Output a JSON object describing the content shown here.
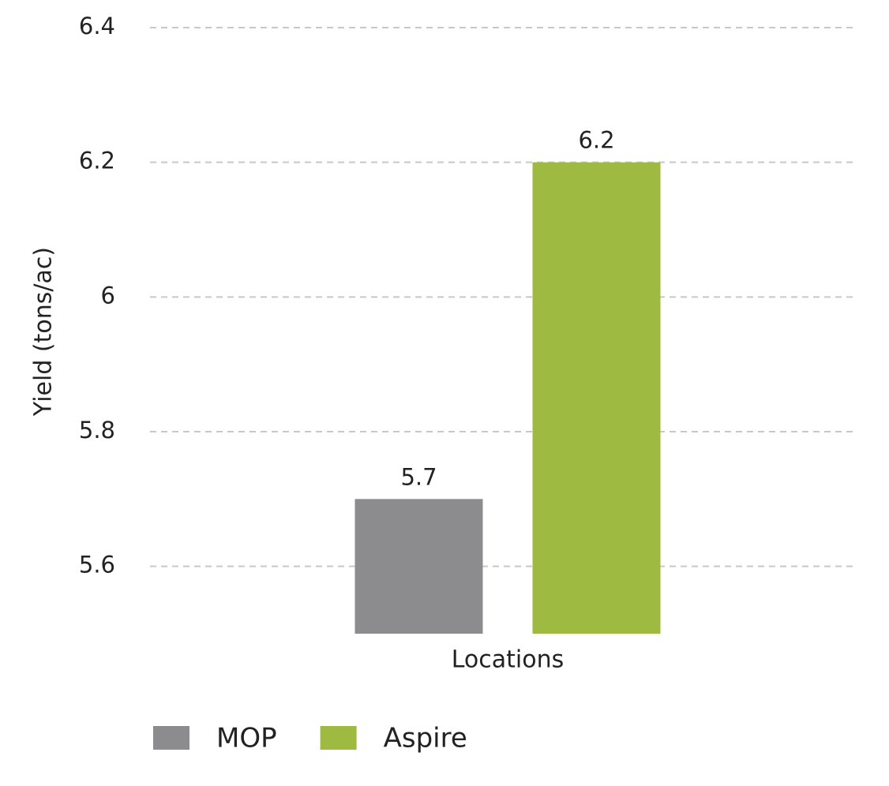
{
  "chart_data": {
    "type": "bar",
    "y_label": "Yield (tons/ac)",
    "categories": [
      "Locations"
    ],
    "series": [
      {
        "name": "MOP",
        "color": "#8c8c8e",
        "values": [
          5.7
        ]
      },
      {
        "name": "Aspire",
        "color": "#9fba41",
        "values": [
          6.2
        ]
      }
    ],
    "ylim": [
      5.5,
      6.4
    ],
    "yticks": [
      5.6,
      5.8,
      6,
      6.2,
      6.4
    ],
    "grid": true,
    "legend": "bottom-left"
  }
}
